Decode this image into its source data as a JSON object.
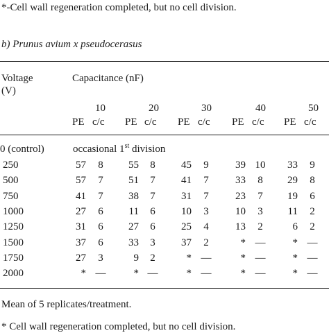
{
  "top_note": "*-Cell wall regeneration completed, but no cell division.",
  "section_title": "b) Prunus avium x pseudocerasus",
  "table": {
    "voltage_label": "Voltage",
    "voltage_unit": "(V)",
    "capacitance_label": "Capacitance (nF)",
    "capacitances": [
      "10",
      "20",
      "30",
      "40",
      "50"
    ],
    "sub_headers": [
      "PE",
      "c/c",
      "PE",
      "c/c",
      "PE",
      "c/c",
      "PE",
      "c/c",
      "PE",
      "c/c"
    ],
    "control_row": {
      "label": "0 (control)",
      "note_main": "occasional 1",
      "note_sup": "st",
      "note_tail": " division"
    },
    "rows": [
      {
        "voltage": "250",
        "values": [
          "57",
          "8",
          "55",
          "8",
          "45",
          "9",
          "39",
          "10",
          "33",
          "9"
        ]
      },
      {
        "voltage": "500",
        "values": [
          "57",
          "7",
          "51",
          "7",
          "41",
          "7",
          "33",
          "8",
          "29",
          "8"
        ]
      },
      {
        "voltage": "750",
        "values": [
          "41",
          "7",
          "38",
          "7",
          "31",
          "7",
          "23",
          "7",
          "19",
          "6"
        ]
      },
      {
        "voltage": "1000",
        "values": [
          "27",
          "6",
          "11",
          "6",
          "10",
          "3",
          "10",
          "3",
          "11",
          "2"
        ]
      },
      {
        "voltage": "1250",
        "values": [
          "31",
          "6",
          "27",
          "6",
          "25",
          "4",
          "13",
          "2",
          "6",
          "2"
        ]
      },
      {
        "voltage": "1500",
        "values": [
          "37",
          "6",
          "33",
          "3",
          "37",
          "2",
          "*",
          "—",
          "*",
          "—"
        ]
      },
      {
        "voltage": "1750",
        "values": [
          "27",
          "3",
          "9",
          "2",
          "*",
          "—",
          "*",
          "—",
          "*",
          "—"
        ]
      },
      {
        "voltage": "2000",
        "values": [
          "*",
          "—",
          "*",
          "—",
          "*",
          "—",
          "*",
          "—",
          "*",
          "—"
        ]
      }
    ]
  },
  "footnote_mean": "Mean of 5 replicates/treatment.",
  "footnote_star": "* Cell wall regeneration completed, but no cell division."
}
